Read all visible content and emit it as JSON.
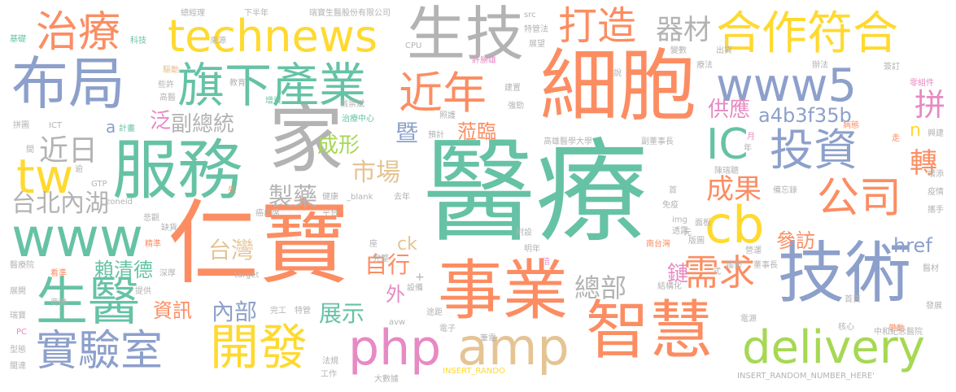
{
  "words": [
    {
      "text": "醫療",
      "color": "#66c2a5"
    },
    {
      "text": "仁寶",
      "color": "#fc8d62"
    },
    {
      "text": "細胞",
      "color": "#fc8d62"
    },
    {
      "text": "家",
      "color": "#b3b3b3"
    },
    {
      "text": "技術",
      "color": "#8da0cb"
    },
    {
      "text": "事業",
      "color": "#fc8d62"
    },
    {
      "text": "智慧",
      "color": "#fc8d62"
    },
    {
      "text": "服務",
      "color": "#66c2a5"
    },
    {
      "text": "布局",
      "color": "#8da0cb"
    },
    {
      "text": "生技",
      "color": "#b3b3b3"
    },
    {
      "text": "technews",
      "color": "#ffd92f"
    },
    {
      "text": "www",
      "color": "#66c2a5"
    },
    {
      "text": "www5",
      "color": "#8da0cb"
    },
    {
      "text": "旗下產業",
      "color": "#66c2a5"
    },
    {
      "text": "生醫",
      "color": "#66c2a5"
    },
    {
      "text": "實驗室",
      "color": "#8da0cb"
    },
    {
      "text": "開發",
      "color": "#ffd92f"
    },
    {
      "text": "php",
      "color": "#e78ac3"
    },
    {
      "text": "amp",
      "color": "#e5c494"
    },
    {
      "text": "delivery",
      "color": "#a6d854"
    },
    {
      "text": "合作符合",
      "color": "#ffd92f"
    },
    {
      "text": "近年",
      "color": "#fc8d62"
    },
    {
      "text": "打造",
      "color": "#fc8d62"
    },
    {
      "text": "治療",
      "color": "#fc8d62"
    },
    {
      "text": "投資",
      "color": "#8da0cb"
    },
    {
      "text": "公司",
      "color": "#fc8d62"
    },
    {
      "text": "cb",
      "color": "#ffd92f"
    },
    {
      "text": "IC",
      "color": "#66c2a5"
    },
    {
      "text": "tw",
      "color": "#ffd92f"
    },
    {
      "text": "需求",
      "color": "#fc8d62"
    },
    {
      "text": "拼",
      "color": "#e78ac3"
    },
    {
      "text": "器材",
      "color": "#b3b3b3"
    },
    {
      "text": "a4b3f35b",
      "color": "#8da0cb"
    },
    {
      "text": "市場",
      "color": "#e5c494"
    },
    {
      "text": "製藥",
      "color": "#b3b3b3"
    },
    {
      "text": "成形",
      "color": "#a6d854"
    },
    {
      "text": "暨",
      "color": "#8da0cb"
    },
    {
      "text": "蒞臨",
      "color": "#fc8d62"
    },
    {
      "text": "近日",
      "color": "#b3b3b3"
    },
    {
      "text": "台北內湖",
      "color": "#b3b3b3"
    },
    {
      "text": "副總統",
      "color": "#b3b3b3"
    },
    {
      "text": "泛",
      "color": "#e78ac3"
    },
    {
      "text": "a",
      "color": "#8da0cb"
    },
    {
      "text": "台灣",
      "color": "#e5c494"
    },
    {
      "text": "自行",
      "color": "#fc8d62"
    },
    {
      "text": "成果",
      "color": "#fc8d62"
    },
    {
      "text": "參訪",
      "color": "#fc8d62"
    },
    {
      "text": "href",
      "color": "#8da0cb"
    },
    {
      "text": "供應",
      "color": "#e78ac3"
    },
    {
      "text": "轉",
      "color": "#fc8d62"
    },
    {
      "text": "n",
      "color": "#ffd92f"
    },
    {
      "text": "鏈",
      "color": "#e78ac3"
    },
    {
      "text": "總部",
      "color": "#b3b3b3"
    },
    {
      "text": "內部",
      "color": "#8da0cb"
    },
    {
      "text": "展示",
      "color": "#66c2a5"
    },
    {
      "text": "資訊",
      "color": "#fc8d62"
    },
    {
      "text": "賴清德",
      "color": "#66c2a5"
    },
    {
      "text": "外",
      "color": "#e78ac3"
    },
    {
      "text": "ck",
      "color": "#e5c494"
    },
    {
      "text": "總經理",
      "color": "#b3b3b3"
    },
    {
      "text": "下半年",
      "color": "#b3b3b3"
    },
    {
      "text": "瑞寶生醫股份有限公司",
      "color": "#b3b3b3"
    },
    {
      "text": "src",
      "color": "#b3b3b3"
    },
    {
      "text": "特管法",
      "color": "#b3b3b3"
    },
    {
      "text": "展望",
      "color": "#b3b3b3"
    },
    {
      "text": "CPU",
      "color": "#b3b3b3"
    },
    {
      "text": "許勝雄",
      "color": "#e78ac3"
    },
    {
      "text": "科技",
      "color": "#66c2a5"
    },
    {
      "text": "來源",
      "color": "#b3b3b3"
    },
    {
      "text": "基礎",
      "color": "#66c2a5"
    },
    {
      "text": "驅動",
      "color": "#e5c494"
    },
    {
      "text": "些許",
      "color": "#b3b3b3"
    },
    {
      "text": "高醫",
      "color": "#b3b3b3"
    },
    {
      "text": "教育",
      "color": "#b3b3b3"
    },
    {
      "text": "增資",
      "color": "#66c2a5"
    },
    {
      "text": "翁崇斌",
      "color": "#b3b3b3"
    },
    {
      "text": "照護",
      "color": "#b3b3b3"
    },
    {
      "text": "強勁",
      "color": "#b3b3b3"
    },
    {
      "text": "建置",
      "color": "#b3b3b3"
    },
    {
      "text": "說",
      "color": "#b3b3b3"
    },
    {
      "text": "變數",
      "color": "#b3b3b3"
    },
    {
      "text": "出貨",
      "color": "#b3b3b3"
    },
    {
      "text": "療法",
      "color": "#b3b3b3"
    },
    {
      "text": "辦法",
      "color": "#b3b3b3"
    },
    {
      "text": "簽訂",
      "color": "#b3b3b3"
    },
    {
      "text": "零組件",
      "color": "#e78ac3"
    },
    {
      "text": "拼圖",
      "color": "#b3b3b3"
    },
    {
      "text": "ICT",
      "color": "#b3b3b3"
    },
    {
      "text": "計畫",
      "color": "#66c2a5"
    },
    {
      "text": "治療中心",
      "color": "#66c2a5"
    },
    {
      "text": "預計",
      "color": "#b3b3b3"
    },
    {
      "text": "高雄醫學大學",
      "color": "#b3b3b3"
    },
    {
      "text": "副董事長",
      "color": "#b3b3b3"
    },
    {
      "text": "病態",
      "color": "#fc8d62"
    },
    {
      "text": "興建",
      "color": "#b3b3b3"
    },
    {
      "text": "走",
      "color": "#fc8d62"
    },
    {
      "text": "陳瑞聰",
      "color": "#b3b3b3"
    },
    {
      "text": "備忘錄",
      "color": "#b3b3b3"
    },
    {
      "text": "增添",
      "color": "#b3b3b3"
    },
    {
      "text": "疫情",
      "color": "#b3b3b3"
    },
    {
      "text": "攜手",
      "color": "#b3b3b3"
    },
    {
      "text": "GTP",
      "color": "#b3b3b3"
    },
    {
      "text": "zoneid",
      "color": "#b3b3b3"
    },
    {
      "text": "逾",
      "color": "#b3b3b3"
    },
    {
      "text": "悲觀",
      "color": "#b3b3b3"
    },
    {
      "text": "缺貨",
      "color": "#b3b3b3"
    },
    {
      "text": "精準",
      "color": "#fc8d62"
    },
    {
      "text": "癌症席",
      "color": "#b3b3b3"
    },
    {
      "text": "健康",
      "color": "#b3b3b3"
    },
    {
      "text": "平台",
      "color": "#b3b3b3"
    },
    {
      "text": "_blank",
      "color": "#b3b3b3"
    },
    {
      "text": "去年",
      "color": "#b3b3b3"
    },
    {
      "text": "免疫",
      "color": "#b3b3b3"
    },
    {
      "text": "透露",
      "color": "#b3b3b3"
    },
    {
      "text": "南台灣",
      "color": "#fc8d62"
    },
    {
      "text": "target",
      "color": "#b3b3b3"
    },
    {
      "text": "深厚",
      "color": "#b3b3b3"
    },
    {
      "text": "看準",
      "color": "#fc8d62"
    },
    {
      "text": "醫療院",
      "color": "#b3b3b3"
    },
    {
      "text": "提供",
      "color": "#b3b3b3"
    },
    {
      "text": "展開",
      "color": "#b3b3b3"
    },
    {
      "text": "商機",
      "color": "#b3b3b3"
    },
    {
      "text": "瑞寶",
      "color": "#b3b3b3"
    },
    {
      "text": "PC",
      "color": "#e78ac3"
    },
    {
      "text": "型態",
      "color": "#b3b3b3"
    },
    {
      "text": "閩達",
      "color": "#b3b3b3"
    },
    {
      "text": "完工",
      "color": "#b3b3b3"
    },
    {
      "text": "特管",
      "color": "#b3b3b3"
    },
    {
      "text": "avw",
      "color": "#b3b3b3"
    },
    {
      "text": "法規",
      "color": "#b3b3b3"
    },
    {
      "text": "工作",
      "color": "#b3b3b3"
    },
    {
      "text": "大數據",
      "color": "#b3b3b3"
    },
    {
      "text": "完整",
      "color": "#b3b3b3"
    },
    {
      "text": "筆電",
      "color": "#b3b3b3"
    },
    {
      "text": "電子",
      "color": "#b3b3b3"
    },
    {
      "text": "設備",
      "color": "#b3b3b3"
    },
    {
      "text": "INSERT_RANDO",
      "color": "#ffd92f"
    },
    {
      "text": "INSERT_RANDOM_NUMBER_HERE'",
      "color": "#b3b3b3"
    },
    {
      "text": "結構化",
      "color": "#b3b3b3"
    },
    {
      "text": "營運",
      "color": "#b3b3b3"
    },
    {
      "text": "董事長",
      "color": "#b3b3b3"
    },
    {
      "text": "首頁",
      "color": "#b3b3b3"
    },
    {
      "text": "核心",
      "color": "#b3b3b3"
    },
    {
      "text": "帶動",
      "color": "#fc8d62"
    },
    {
      "text": "發展",
      "color": "#b3b3b3"
    },
    {
      "text": "中和紀念醫院",
      "color": "#b3b3b3"
    },
    {
      "text": "醫材",
      "color": "#b3b3b3"
    },
    {
      "text": "電源",
      "color": "#b3b3b3"
    },
    {
      "text": "趨勢",
      "color": "#b3b3b3"
    },
    {
      "text": "版圖",
      "color": "#b3b3b3"
    },
    {
      "text": "面板",
      "color": "#b3b3b3"
    },
    {
      "text": "img",
      "color": "#b3b3b3"
    },
    {
      "text": "元",
      "color": "#b3b3b3"
    },
    {
      "text": "明年",
      "color": "#b3b3b3"
    },
    {
      "text": "倍",
      "color": "#e78ac3"
    },
    {
      "text": "附設",
      "color": "#b3b3b3"
    },
    {
      "text": "座",
      "color": "#b3b3b3"
    },
    {
      "text": "先",
      "color": "#fc8d62"
    },
    {
      "text": "首",
      "color": "#b3b3b3"
    },
    {
      "text": "年",
      "color": "#b3b3b3"
    },
    {
      "text": "月",
      "color": "#e78ac3"
    },
    {
      "text": "式",
      "color": "#b3b3b3"
    },
    {
      "text": "間",
      "color": "#b3b3b3"
    },
    {
      "text": "途距",
      "color": "#b3b3b3"
    },
    {
      "text": "+",
      "color": "#b3b3b3"
    }
  ]
}
